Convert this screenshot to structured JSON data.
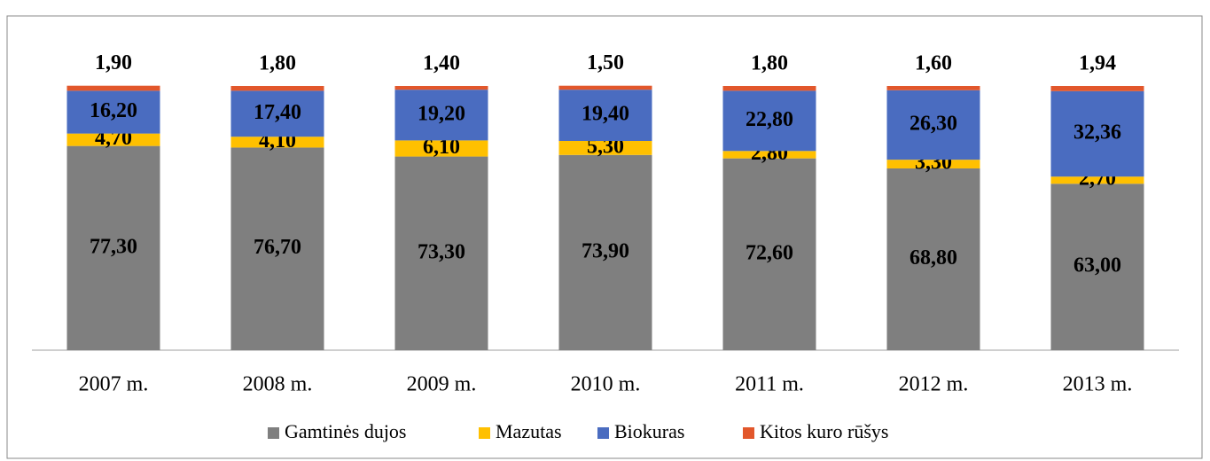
{
  "chart_data": {
    "type": "stacked_bar",
    "categories": [
      "2007 m.",
      "2008 m.",
      "2009 m.",
      "2010 m.",
      "2011 m.",
      "2012 m.",
      "2013 m."
    ],
    "series": [
      {
        "name": "Gamtinės dujos",
        "color": "#7f7f7f",
        "values": [
          77.3,
          76.7,
          73.3,
          73.9,
          72.6,
          68.8,
          63.0
        ],
        "value_labels": [
          "77,30",
          "76,70",
          "73,30",
          "73,90",
          "72,60",
          "68,80",
          "63,00"
        ]
      },
      {
        "name": "Mazutas",
        "color": "#ffc000",
        "values": [
          4.7,
          4.1,
          6.1,
          5.3,
          2.8,
          3.3,
          2.7
        ],
        "value_labels": [
          "4,70",
          "4,10",
          "6,10",
          "5,30",
          "2,80",
          "3,30",
          "2,70"
        ]
      },
      {
        "name": "Biokuras",
        "color": "#4a6cc0",
        "values": [
          16.2,
          17.4,
          19.2,
          19.4,
          22.8,
          26.3,
          32.36
        ],
        "value_labels": [
          "16,20",
          "17,40",
          "19,20",
          "19,40",
          "22,80",
          "26,30",
          "32,36"
        ]
      },
      {
        "name": "Kitos kuro rūšys",
        "color": "#e2572b",
        "values": [
          1.9,
          1.8,
          1.4,
          1.5,
          1.8,
          1.6,
          1.94
        ],
        "value_labels": [
          "1,90",
          "1,80",
          "1,40",
          "1,50",
          "1,80",
          "1,60",
          "1,94"
        ]
      }
    ],
    "ylim": [
      0,
      100
    ],
    "legend": "bottom"
  }
}
